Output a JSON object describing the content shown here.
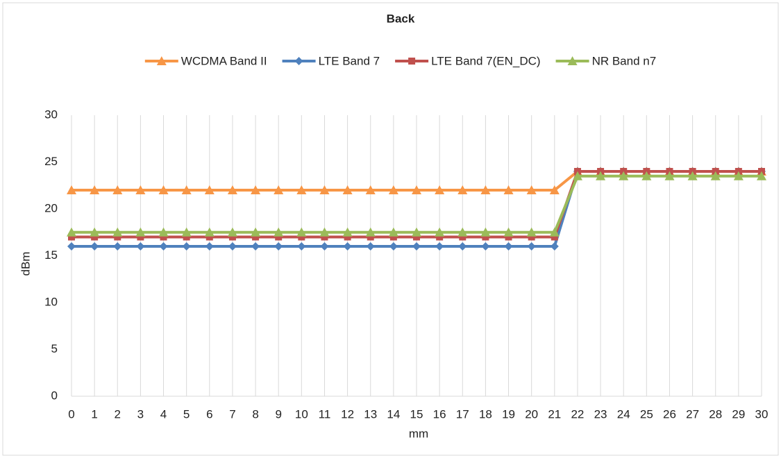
{
  "chart_data": {
    "type": "line",
    "title": "Back",
    "x_label": "mm",
    "y_label": "dBm",
    "x": [
      0,
      1,
      2,
      3,
      4,
      5,
      6,
      7,
      8,
      9,
      10,
      11,
      12,
      13,
      14,
      15,
      16,
      17,
      18,
      19,
      20,
      21,
      22,
      23,
      24,
      25,
      26,
      27,
      28,
      29,
      30
    ],
    "xlim": [
      0,
      30
    ],
    "xticks": [
      0,
      1,
      2,
      3,
      4,
      5,
      6,
      7,
      8,
      9,
      10,
      11,
      12,
      13,
      14,
      15,
      16,
      17,
      18,
      19,
      20,
      21,
      22,
      23,
      24,
      25,
      26,
      27,
      28,
      29,
      30
    ],
    "ylim": [
      0,
      30
    ],
    "yticks": [
      0,
      5,
      10,
      15,
      20,
      25,
      30
    ],
    "grid": "x",
    "legend": "top",
    "series": [
      {
        "name": "WCDMA Band II",
        "color": "#f79646",
        "marker": "triangle",
        "values": [
          22,
          22,
          22,
          22,
          22,
          22,
          22,
          22,
          22,
          22,
          22,
          22,
          22,
          22,
          22,
          22,
          22,
          22,
          22,
          22,
          22,
          22,
          24,
          24,
          24,
          24,
          24,
          24,
          24,
          24,
          24
        ]
      },
      {
        "name": "LTE Band 7",
        "color": "#4f81bd",
        "marker": "diamond",
        "values": [
          16,
          16,
          16,
          16,
          16,
          16,
          16,
          16,
          16,
          16,
          16,
          16,
          16,
          16,
          16,
          16,
          16,
          16,
          16,
          16,
          16,
          16,
          24,
          24,
          24,
          24,
          24,
          24,
          24,
          24,
          24
        ]
      },
      {
        "name": "LTE Band 7(EN_DC)",
        "color": "#c0504d",
        "marker": "square",
        "values": [
          17,
          17,
          17,
          17,
          17,
          17,
          17,
          17,
          17,
          17,
          17,
          17,
          17,
          17,
          17,
          17,
          17,
          17,
          17,
          17,
          17,
          17,
          24,
          24,
          24,
          24,
          24,
          24,
          24,
          24,
          24
        ]
      },
      {
        "name": "NR Band n7",
        "color": "#9bbb59",
        "marker": "triangle",
        "values": [
          17.5,
          17.5,
          17.5,
          17.5,
          17.5,
          17.5,
          17.5,
          17.5,
          17.5,
          17.5,
          17.5,
          17.5,
          17.5,
          17.5,
          17.5,
          17.5,
          17.5,
          17.5,
          17.5,
          17.5,
          17.5,
          17.5,
          23.5,
          23.5,
          23.5,
          23.5,
          23.5,
          23.5,
          23.5,
          23.5,
          23.5
        ]
      }
    ]
  }
}
